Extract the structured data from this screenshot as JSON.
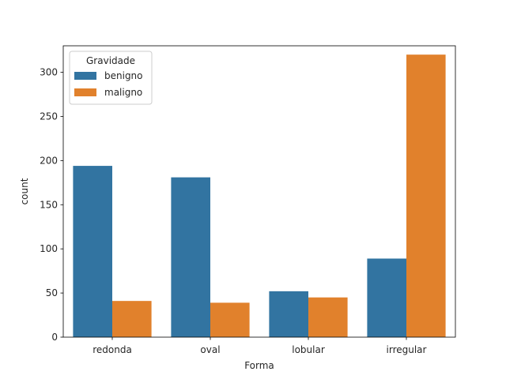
{
  "chart_data": {
    "type": "bar",
    "xlabel": "Forma",
    "ylabel": "count",
    "categories": [
      "redonda",
      "oval",
      "lobular",
      "irregular"
    ],
    "series": [
      {
        "name": "benigno",
        "values": [
          194,
          181,
          52,
          89
        ],
        "color": "#3274a1"
      },
      {
        "name": "maligno",
        "values": [
          41,
          39,
          45,
          320
        ],
        "color": "#e1812c"
      }
    ],
    "ylim": [
      0,
      330
    ],
    "yticks": [
      0,
      50,
      100,
      150,
      200,
      250,
      300
    ],
    "legend": {
      "title": "Gravidade",
      "position": "upper-left"
    },
    "grid": false
  }
}
